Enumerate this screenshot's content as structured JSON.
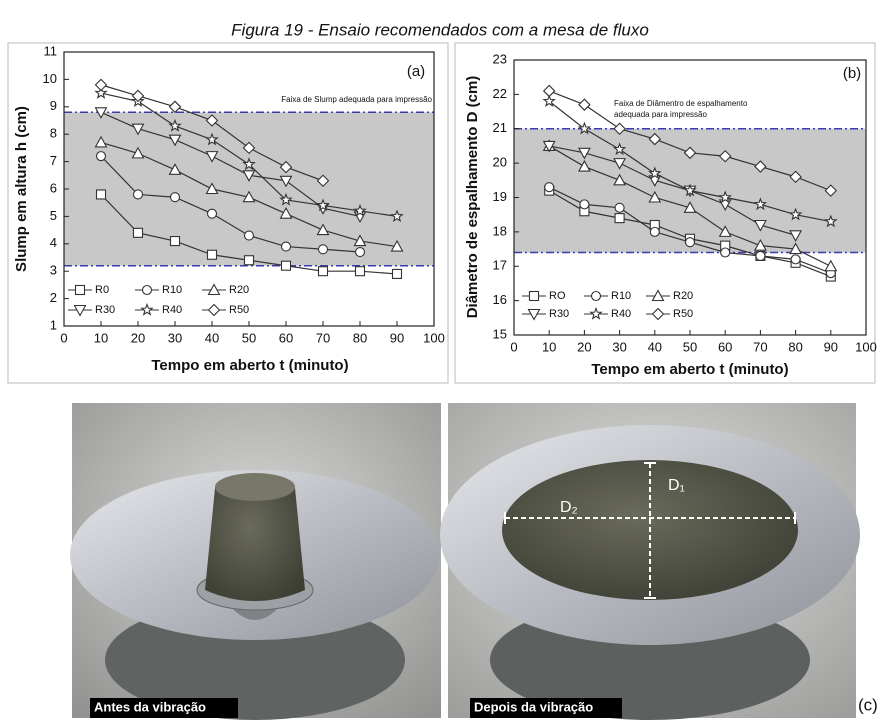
{
  "figure_title": "Figura 19 - Ensaio recomendados com a mesa de fluxo",
  "photos": {
    "before": "Antes da vibração",
    "after": "Depois da vibração",
    "dim_1": "D₁",
    "dim_2": "D₂",
    "panel": "(c)"
  },
  "chart_data": [
    {
      "type": "line",
      "panel_label": "(a)",
      "x_label": "Tempo em aberto t (minuto)",
      "y_label": "Slump em altura h (cm)",
      "annotation": [
        "Faixa de Slump  adequada para impressão"
      ],
      "band": [
        3.2,
        8.8
      ],
      "band_color": "#c8c8c8",
      "band_line_color": "#3b3bb0",
      "x": [
        10,
        20,
        30,
        40,
        50,
        60,
        70,
        80,
        90
      ],
      "xlim": [
        0,
        100
      ],
      "xticks": [
        0,
        10,
        20,
        30,
        40,
        50,
        60,
        70,
        80,
        90,
        100
      ],
      "ylim": [
        1,
        11
      ],
      "yticks": [
        1,
        2,
        3,
        4,
        5,
        6,
        7,
        8,
        9,
        10,
        11
      ],
      "series": [
        {
          "name": "R0",
          "marker": "square",
          "color": "#333",
          "values": [
            5.8,
            4.4,
            4.1,
            3.6,
            3.4,
            3.2,
            3.0,
            3.0,
            2.9
          ]
        },
        {
          "name": "R10",
          "marker": "circle",
          "color": "#333",
          "values": [
            7.2,
            5.8,
            5.7,
            5.1,
            4.3,
            3.9,
            3.8,
            3.7,
            null
          ]
        },
        {
          "name": "R20",
          "marker": "triangle-up",
          "color": "#333",
          "values": [
            7.7,
            7.3,
            6.7,
            6.0,
            5.7,
            5.1,
            4.5,
            4.1,
            3.9
          ]
        },
        {
          "name": "R30",
          "marker": "triangle-down",
          "color": "#333",
          "values": [
            8.8,
            8.2,
            7.8,
            7.2,
            6.5,
            6.3,
            5.3,
            5.0,
            null
          ]
        },
        {
          "name": "R40",
          "marker": "star",
          "color": "#333",
          "values": [
            9.5,
            9.2,
            8.3,
            7.8,
            6.9,
            5.6,
            5.4,
            5.2,
            5.0
          ]
        },
        {
          "name": "R50",
          "marker": "diamond",
          "color": "#333",
          "values": [
            9.8,
            9.4,
            9.0,
            8.5,
            7.5,
            6.8,
            6.3,
            null,
            null
          ]
        }
      ]
    },
    {
      "type": "line",
      "panel_label": "(b)",
      "x_label": "Tempo em aberto t (minuto)",
      "y_label": "Diâmetro de espalhamento D (cm)",
      "annotation": [
        "Faixa de Diâmentro  de espalhamento",
        "adequada para impressão"
      ],
      "band": [
        17.4,
        21.0
      ],
      "band_color": "#c8c8c8",
      "band_line_color": "#3b3bb0",
      "x": [
        10,
        20,
        30,
        40,
        50,
        60,
        70,
        80,
        90
      ],
      "xlim": [
        0,
        100
      ],
      "xticks": [
        0,
        10,
        20,
        30,
        40,
        50,
        60,
        70,
        80,
        90,
        100
      ],
      "ylim": [
        15,
        23
      ],
      "yticks": [
        15,
        16,
        17,
        18,
        19,
        20,
        21,
        22,
        23
      ],
      "series": [
        {
          "name": "RO",
          "marker": "square",
          "color": "#333",
          "values": [
            19.2,
            18.6,
            18.4,
            18.2,
            17.8,
            17.6,
            17.3,
            17.1,
            16.7
          ]
        },
        {
          "name": "R10",
          "marker": "circle",
          "color": "#333",
          "values": [
            19.3,
            18.8,
            18.7,
            18.0,
            17.7,
            17.4,
            17.3,
            17.2,
            16.8
          ]
        },
        {
          "name": "R20",
          "marker": "triangle-up",
          "color": "#333",
          "values": [
            20.5,
            19.9,
            19.5,
            19.0,
            18.7,
            18.0,
            17.6,
            17.5,
            17.0
          ]
        },
        {
          "name": "R30",
          "marker": "triangle-down",
          "color": "#333",
          "values": [
            20.5,
            20.3,
            20.0,
            19.5,
            19.2,
            18.8,
            18.2,
            17.9,
            null
          ]
        },
        {
          "name": "R40",
          "marker": "star",
          "color": "#333",
          "values": [
            21.8,
            21.0,
            20.4,
            19.7,
            19.2,
            19.0,
            18.8,
            18.5,
            18.3
          ]
        },
        {
          "name": "R50",
          "marker": "diamond",
          "color": "#333",
          "values": [
            22.1,
            21.7,
            21.0,
            20.7,
            20.3,
            20.2,
            19.9,
            19.6,
            19.2
          ]
        }
      ]
    }
  ]
}
